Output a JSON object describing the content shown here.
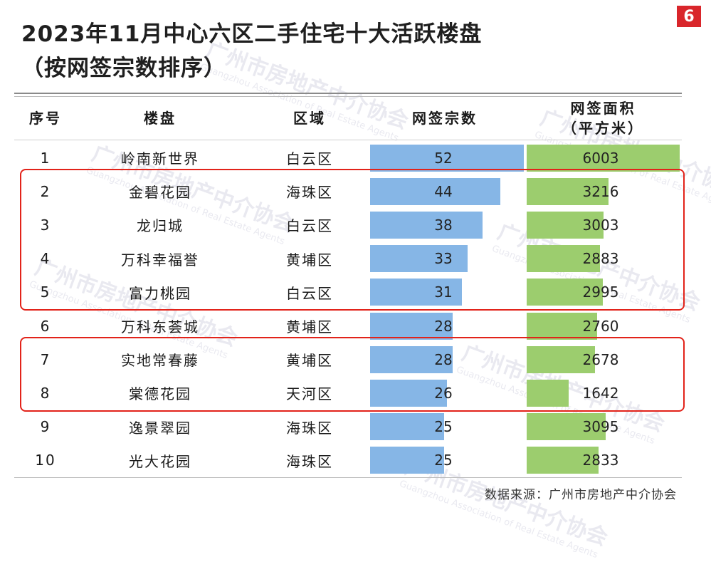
{
  "title_line1": "2023年11月中心六区二手住宅十大活跃楼盘",
  "title_line2": "（按网签宗数排序）",
  "page_number": "6",
  "source": "数据来源：广州市房地产中介协会",
  "watermark": {
    "cn": "广州市房地产中介协会",
    "en": "Guangzhou Association of Real Estate Agents"
  },
  "colors": {
    "count_bar": "#86b6e6",
    "area_bar": "#9ccd6e",
    "highlight": "#e2231a",
    "badge": "#d9262b"
  },
  "chart_data": {
    "type": "table",
    "columns": [
      "序号",
      "楼盘",
      "区域",
      "网签宗数",
      "网签面积\n（平方米）"
    ],
    "rows": [
      {
        "rank": "1",
        "name": "岭南新世界",
        "district": "白云区",
        "count": 52,
        "area": 6003
      },
      {
        "rank": "2",
        "name": "金碧花园",
        "district": "海珠区",
        "count": 44,
        "area": 3216
      },
      {
        "rank": "3",
        "name": "龙归城",
        "district": "白云区",
        "count": 38,
        "area": 3003
      },
      {
        "rank": "4",
        "name": "万科幸福誉",
        "district": "黄埔区",
        "count": 33,
        "area": 2883
      },
      {
        "rank": "5",
        "name": "富力桃园",
        "district": "白云区",
        "count": 31,
        "area": 2995
      },
      {
        "rank": "6",
        "name": "万科东荟城",
        "district": "黄埔区",
        "count": 28,
        "area": 2760
      },
      {
        "rank": "7",
        "name": "实地常春藤",
        "district": "黄埔区",
        "count": 28,
        "area": 2678
      },
      {
        "rank": "8",
        "name": "棠德花园",
        "district": "天河区",
        "count": 26,
        "area": 1642
      },
      {
        "rank": "9",
        "name": "逸景翠园",
        "district": "海珠区",
        "count": 25,
        "area": 3095
      },
      {
        "rank": "10",
        "name": "光大花园",
        "district": "海珠区",
        "count": 25,
        "area": 2833
      }
    ],
    "bar_columns": [
      "网签宗数",
      "网签面积（平方米）"
    ],
    "highlighted_ranks": [
      [
        2,
        5
      ],
      [
        7,
        8
      ]
    ]
  }
}
